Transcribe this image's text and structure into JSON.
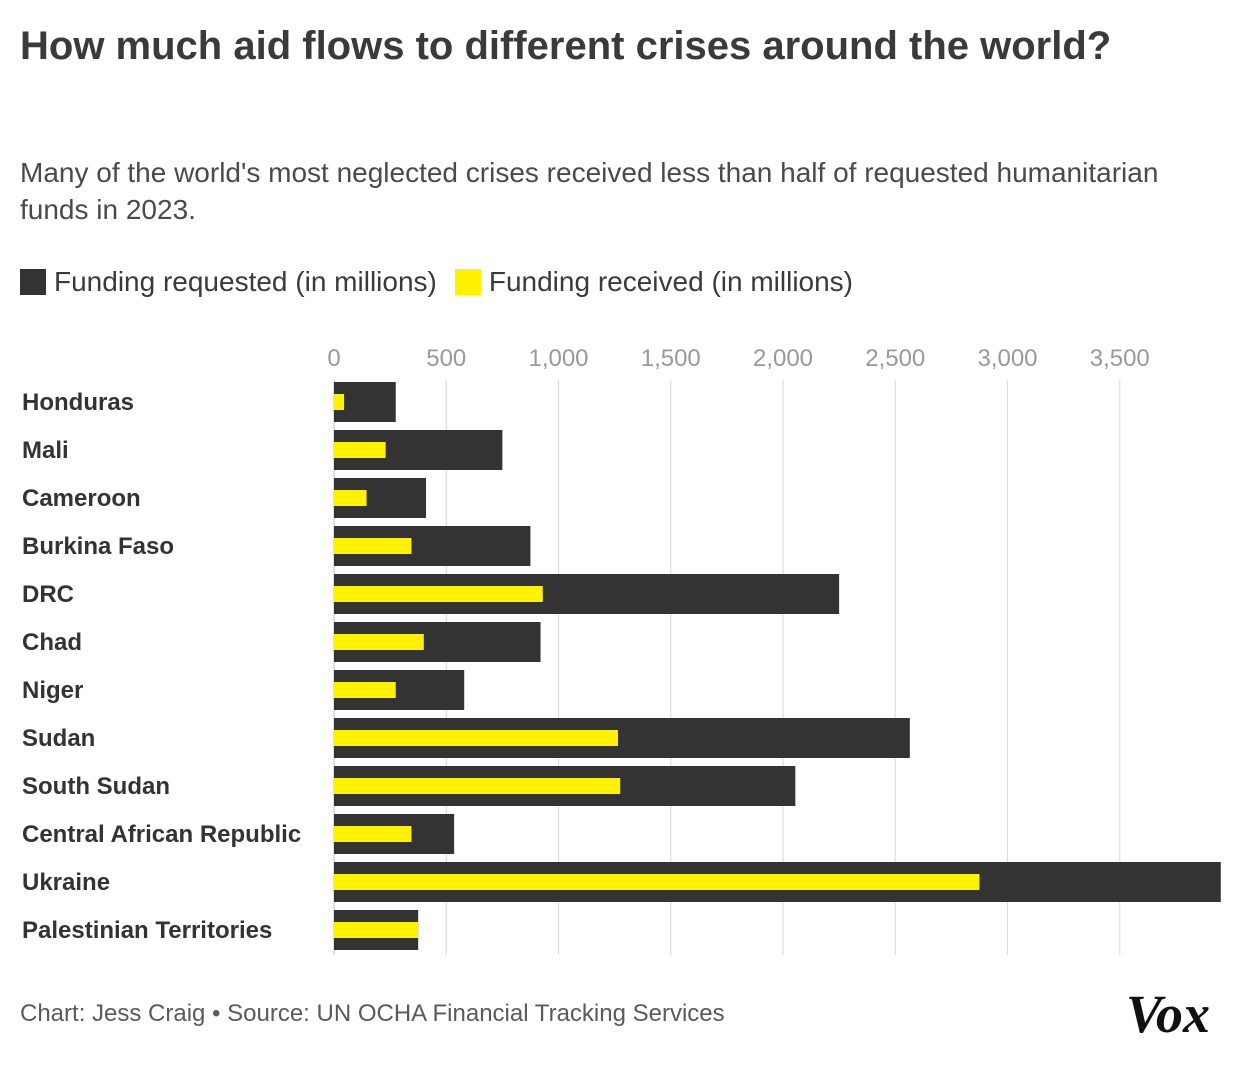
{
  "title": "How much aid flows to different crises around the world?",
  "subtitle": "Many of the world's most neglected crises received less than half of requested humanitarian funds in 2023.",
  "footer": "Chart: Jess Craig • Source: UN OCHA Financial Tracking Services",
  "logo_text": "Vox",
  "colors": {
    "requested": "#333333",
    "received": "#fff200",
    "grid": "#dddddd",
    "tick": "#999999"
  },
  "chart_data": {
    "type": "bar",
    "orientation": "horizontal",
    "categories": [
      "Honduras",
      "Mali",
      "Cameroon",
      "Burkina Faso",
      "DRC",
      "Chad",
      "Niger",
      "Sudan",
      "South Sudan",
      "Central African Republic",
      "Ukraine",
      "Palestinian Territories"
    ],
    "series": [
      {
        "name": "Funding requested (in millions)",
        "values": [
          275,
          750,
          410,
          875,
          2250,
          920,
          580,
          2565,
          2055,
          535,
          3950,
          375
        ]
      },
      {
        "name": "Funding received (in millions)",
        "values": [
          45,
          230,
          145,
          345,
          930,
          400,
          275,
          1265,
          1275,
          345,
          2875,
          375
        ]
      }
    ],
    "x_ticks": [
      "0",
      "500",
      "1,000",
      "1,500",
      "2,000",
      "2,500",
      "3,000",
      "3,500"
    ],
    "x_tick_values": [
      0,
      500,
      1000,
      1500,
      2000,
      2500,
      3000,
      3500
    ],
    "xlim": [
      0,
      3950
    ],
    "grid": true,
    "legend_position": "top-left"
  }
}
